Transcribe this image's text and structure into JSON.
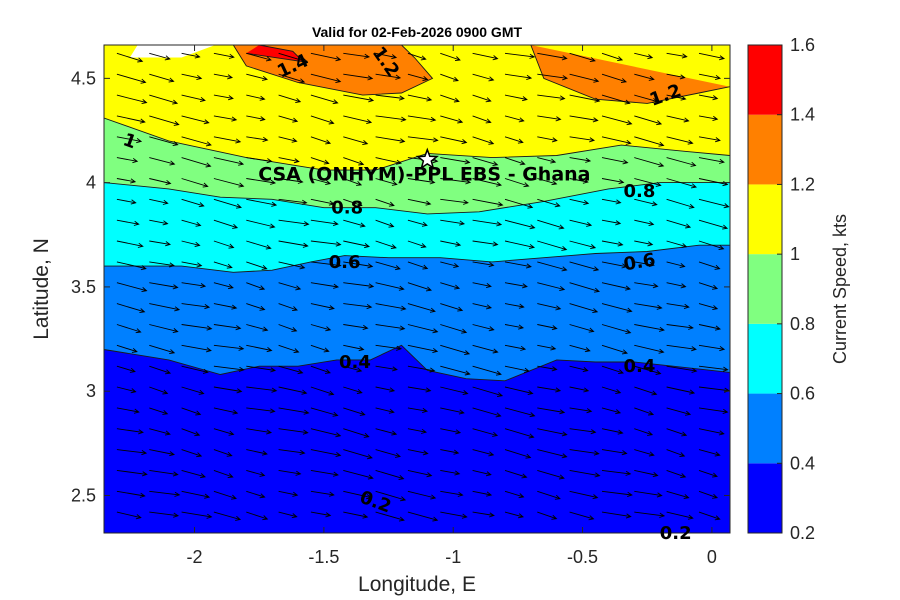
{
  "chart_data": {
    "type": "contour-quiver",
    "title": "Valid for 02-Feb-2026 0900 GMT",
    "xlabel": "Longitude, E",
    "ylabel": "Latitude, N",
    "xlim": [
      -2.35,
      0.07
    ],
    "ylim": [
      2.32,
      4.66
    ],
    "x_ticks": [
      {
        "value": -2,
        "label": "-2"
      },
      {
        "value": -1.5,
        "label": "-1.5"
      },
      {
        "value": -1,
        "label": "-1"
      },
      {
        "value": -0.5,
        "label": "-0.5"
      },
      {
        "value": 0,
        "label": "0"
      }
    ],
    "y_ticks": [
      {
        "value": 2.5,
        "label": "2.5"
      },
      {
        "value": 3,
        "label": "3"
      },
      {
        "value": 3.5,
        "label": "3.5"
      },
      {
        "value": 4,
        "label": "4"
      },
      {
        "value": 4.5,
        "label": "4.5"
      }
    ],
    "colorbar": {
      "label": "Current Speed, kts",
      "levels": [
        0.2,
        0.4,
        0.6,
        0.8,
        1.0,
        1.2,
        1.4,
        1.6
      ],
      "level_labels": [
        "0.2",
        "0.4",
        "0.6",
        "0.8",
        "1",
        "1.2",
        "1.4",
        "1.6"
      ],
      "colors": [
        "#0000ff",
        "#0080ff",
        "#00ffff",
        "#80ff80",
        "#ffff00",
        "#ff8000",
        "#ff0000"
      ]
    },
    "contour_boundaries": [
      {
        "level": 0.4,
        "points": [
          [
            -2.35,
            3.2
          ],
          [
            -2.1,
            3.15
          ],
          [
            -1.9,
            3.08
          ],
          [
            -1.75,
            3.12
          ],
          [
            -1.6,
            3.12
          ],
          [
            -1.45,
            3.15
          ],
          [
            -1.32,
            3.15
          ],
          [
            -1.2,
            3.22
          ],
          [
            -1.1,
            3.1
          ],
          [
            -0.95,
            3.06
          ],
          [
            -0.8,
            3.05
          ],
          [
            -0.6,
            3.15
          ],
          [
            -0.45,
            3.14
          ],
          [
            -0.3,
            3.14
          ],
          [
            -0.15,
            3.12
          ],
          [
            0.07,
            3.09
          ]
        ]
      },
      {
        "level": 0.6,
        "points": [
          [
            -2.35,
            3.6
          ],
          [
            -2.05,
            3.6
          ],
          [
            -1.85,
            3.57
          ],
          [
            -1.7,
            3.58
          ],
          [
            -1.55,
            3.62
          ],
          [
            -1.42,
            3.65
          ],
          [
            -1.25,
            3.64
          ],
          [
            -1.05,
            3.64
          ],
          [
            -0.85,
            3.62
          ],
          [
            -0.65,
            3.64
          ],
          [
            -0.45,
            3.66
          ],
          [
            -0.25,
            3.67
          ],
          [
            -0.05,
            3.7
          ],
          [
            0.07,
            3.7
          ]
        ]
      },
      {
        "level": 0.8,
        "points": [
          [
            -2.35,
            4.0
          ],
          [
            -2.1,
            3.97
          ],
          [
            -1.9,
            3.93
          ],
          [
            -1.7,
            3.92
          ],
          [
            -1.5,
            3.88
          ],
          [
            -1.3,
            3.88
          ],
          [
            -1.1,
            3.85
          ],
          [
            -0.9,
            3.86
          ],
          [
            -0.65,
            3.91
          ],
          [
            -0.4,
            3.97
          ],
          [
            -0.2,
            4.0
          ],
          [
            0.07,
            4.0
          ]
        ]
      },
      {
        "level": 1.0,
        "points": [
          [
            -2.35,
            4.31
          ],
          [
            -2.1,
            4.2
          ],
          [
            -1.8,
            4.12
          ],
          [
            -1.5,
            4.06
          ],
          [
            -1.3,
            4.06
          ],
          [
            -1.1,
            4.14
          ],
          [
            -0.85,
            4.12
          ],
          [
            -0.6,
            4.13
          ],
          [
            -0.35,
            4.18
          ],
          [
            -0.1,
            4.15
          ],
          [
            0.07,
            4.13
          ]
        ]
      },
      {
        "level": 1.2,
        "points": [
          [
            -1.85,
            4.66
          ],
          [
            -1.8,
            4.56
          ],
          [
            -1.6,
            4.48
          ],
          [
            -1.35,
            4.42
          ],
          [
            -1.2,
            4.43
          ],
          [
            -1.08,
            4.5
          ],
          [
            -1.15,
            4.6
          ],
          [
            -1.2,
            4.66
          ]
        ]
      },
      {
        "level": 1.2,
        "points": [
          [
            -0.7,
            4.66
          ],
          [
            -0.65,
            4.5
          ],
          [
            -0.45,
            4.4
          ],
          [
            -0.25,
            4.38
          ],
          [
            -0.05,
            4.43
          ],
          [
            0.07,
            4.46
          ]
        ]
      },
      {
        "level": 1.4,
        "points": [
          [
            -1.75,
            4.66
          ],
          [
            -1.62,
            4.63
          ],
          [
            -1.58,
            4.58
          ],
          [
            -1.8,
            4.62
          ]
        ]
      }
    ],
    "contour_labels": [
      {
        "text": "1.4",
        "lon": -1.62,
        "lat": 4.56,
        "angle": -25
      },
      {
        "text": "1.2",
        "lon": -1.26,
        "lat": 4.58,
        "angle": 55
      },
      {
        "text": "1.2",
        "lon": -0.18,
        "lat": 4.42,
        "angle": -20
      },
      {
        "text": "1",
        "lon": -2.25,
        "lat": 4.2,
        "angle": 20
      },
      {
        "text": "0.8",
        "lon": -1.41,
        "lat": 3.88,
        "angle": 0
      },
      {
        "text": "0.8",
        "lon": -0.28,
        "lat": 3.96,
        "angle": 0
      },
      {
        "text": "0.6",
        "lon": -1.42,
        "lat": 3.62,
        "angle": 0
      },
      {
        "text": "0.6",
        "lon": -0.28,
        "lat": 3.62,
        "angle": -10
      },
      {
        "text": "0.4",
        "lon": -1.38,
        "lat": 3.14,
        "angle": 0
      },
      {
        "text": "0.4",
        "lon": -0.28,
        "lat": 3.12,
        "angle": 0
      },
      {
        "text": "0.2",
        "lon": -1.3,
        "lat": 2.47,
        "angle": 20
      },
      {
        "text": "0.2",
        "lon": -0.14,
        "lat": 2.32,
        "angle": 0
      }
    ],
    "site": {
      "name": "CSA (ONHYM)-PPL EBS - Ghana",
      "lon": -1.1,
      "lat": 4.11,
      "marker": "star"
    },
    "quiver": {
      "x_start": -2.3,
      "x_step": 0.125,
      "x_count": 19,
      "y_start": 2.42,
      "y_step": 0.1,
      "y_count": 23
    }
  }
}
